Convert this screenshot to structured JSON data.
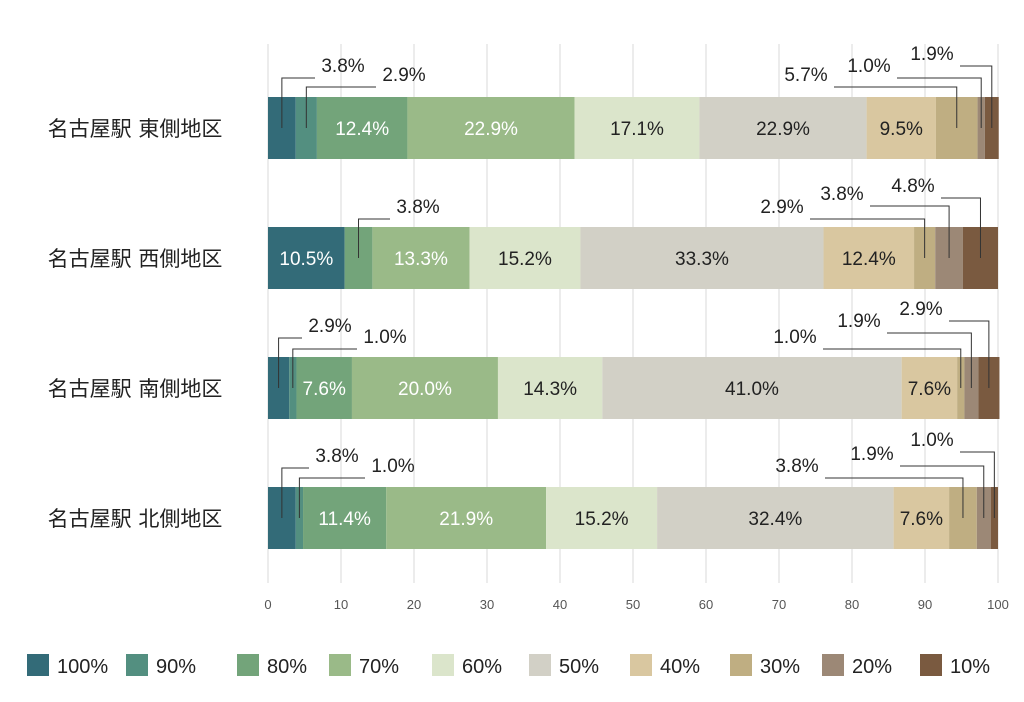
{
  "chart_data": {
    "type": "bar",
    "orientation": "horizontal",
    "stacked": true,
    "categories": [
      "名古屋駅 東側地区",
      "名古屋駅 西側地区",
      "名古屋駅 南側地区",
      "名古屋駅 北側地区"
    ],
    "series": [
      {
        "name": "100%",
        "color": "#336b78",
        "values": [
          3.8,
          10.5,
          2.9,
          3.8
        ]
      },
      {
        "name": "90%",
        "color": "#538f80",
        "values": [
          2.9,
          0,
          1.0,
          1.0
        ]
      },
      {
        "name": "80%",
        "color": "#73a47a",
        "values": [
          12.4,
          3.8,
          7.6,
          11.4
        ]
      },
      {
        "name": "70%",
        "color": "#9aba88",
        "values": [
          22.9,
          13.3,
          20.0,
          21.9
        ]
      },
      {
        "name": "60%",
        "color": "#dbe5cb",
        "values": [
          17.1,
          15.2,
          14.3,
          15.2
        ]
      },
      {
        "name": "50%",
        "color": "#d2d0c6",
        "values": [
          22.9,
          33.3,
          41.0,
          32.4
        ]
      },
      {
        "name": "40%",
        "color": "#d9c7a0",
        "values": [
          9.5,
          12.4,
          7.6,
          7.6
        ]
      },
      {
        "name": "30%",
        "color": "#bfae82",
        "values": [
          5.7,
          2.9,
          1.0,
          3.8
        ]
      },
      {
        "name": "20%",
        "color": "#9c8876",
        "values": [
          1.0,
          3.8,
          1.9,
          1.9
        ]
      },
      {
        "name": "10%",
        "color": "#7a5a40",
        "values": [
          1.9,
          4.8,
          2.9,
          1.0
        ]
      }
    ],
    "data_labels": [
      [
        "3.8%",
        "2.9%",
        "12.4%",
        "22.9%",
        "17.1%",
        "22.9%",
        "9.5%",
        "5.7%",
        "1.0%",
        "1.9%"
      ],
      [
        "10.5%",
        "",
        "3.8%",
        "13.3%",
        "15.2%",
        "33.3%",
        "12.4%",
        "2.9%",
        "3.8%",
        "4.8%"
      ],
      [
        "2.9%",
        "1.0%",
        "7.6%",
        "20.0%",
        "14.3%",
        "41.0%",
        "7.6%",
        "1.0%",
        "1.9%",
        "2.9%"
      ],
      [
        "3.8%",
        "1.0%",
        "11.4%",
        "21.9%",
        "15.2%",
        "32.4%",
        "7.6%",
        "3.8%",
        "1.9%",
        "1.0%"
      ]
    ],
    "xlim": [
      0,
      100
    ],
    "xticks": [
      "0",
      "10",
      "20",
      "30",
      "40",
      "50",
      "60",
      "70",
      "80",
      "90",
      "100"
    ],
    "grid": true,
    "legend_position": "bottom",
    "title": "",
    "xlabel": "",
    "ylabel": ""
  }
}
